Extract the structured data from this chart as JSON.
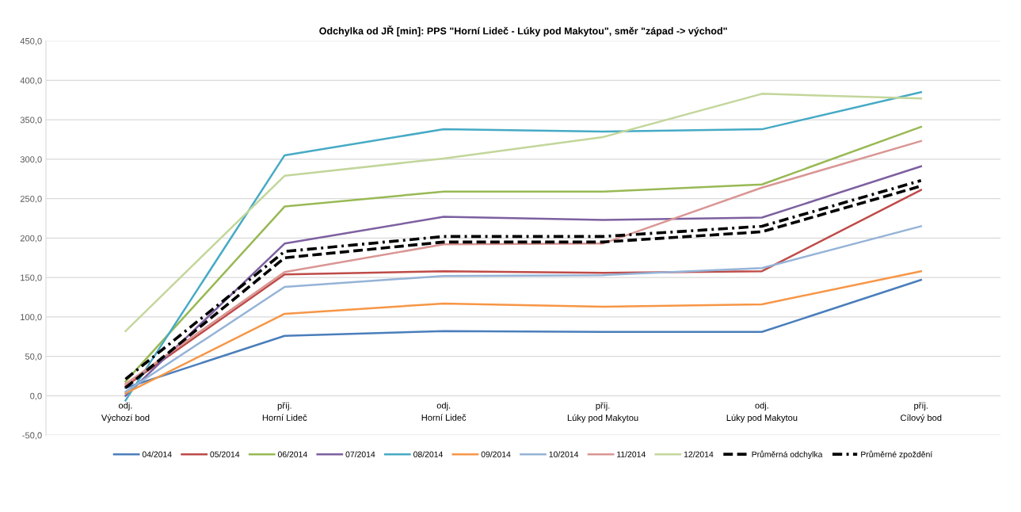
{
  "chart_data": {
    "type": "line",
    "title": "Odchylka od JŘ [min]: PPS \"Horní Lideč - Lúky pod Makytou\", směr \"západ -> východ\"",
    "categories": [
      "odj.\nVýchozí bod",
      "příj.\nHorní Lideč",
      "odj.\nHorní Lideč",
      "příj.\nLúky pod Makytou",
      "odj.\nLúky pod Makytou",
      "příj.\nCílový bod"
    ],
    "series": [
      {
        "name": "04/2014",
        "color": "#4a7ebb",
        "values": [
          10,
          76,
          82,
          81,
          81,
          147
        ]
      },
      {
        "name": "05/2014",
        "color": "#be4b48",
        "values": [
          12,
          154,
          158,
          156,
          158,
          261
        ]
      },
      {
        "name": "06/2014",
        "color": "#98b954",
        "values": [
          18,
          240,
          259,
          259,
          268,
          341
        ]
      },
      {
        "name": "07/2014",
        "color": "#7d60a0",
        "values": [
          0,
          193,
          227,
          223,
          226,
          291
        ]
      },
      {
        "name": "08/2014",
        "color": "#46aac5",
        "values": [
          -6,
          305,
          338,
          335,
          338,
          385
        ]
      },
      {
        "name": "09/2014",
        "color": "#f79646",
        "values": [
          3,
          104,
          117,
          113,
          116,
          158
        ]
      },
      {
        "name": "10/2014",
        "color": "#95b3d7",
        "values": [
          5,
          138,
          152,
          153,
          162,
          215
        ]
      },
      {
        "name": "11/2014",
        "color": "#d99694",
        "values": [
          15,
          157,
          192,
          193,
          264,
          323
        ]
      },
      {
        "name": "12/2014",
        "color": "#c3d69b",
        "values": [
          82,
          279,
          301,
          328,
          383,
          377
        ]
      },
      {
        "name": "Průměrná odchylka",
        "color": "#000000",
        "line_style": "dashed",
        "values": [
          10,
          175,
          195,
          195,
          208,
          266
        ]
      },
      {
        "name": "Průměrné zpoždění",
        "color": "#000000",
        "line_style": "dashdot",
        "values": [
          21,
          183,
          202,
          202,
          215,
          273
        ]
      }
    ],
    "ylim": [
      -50,
      450
    ],
    "yticks": [
      {
        "value": -50,
        "label": "-50,0"
      },
      {
        "value": 0,
        "label": "0,0"
      },
      {
        "value": 50,
        "label": "50,0"
      },
      {
        "value": 100,
        "label": "100,0"
      },
      {
        "value": 150,
        "label": "150,0"
      },
      {
        "value": 200,
        "label": "200,0"
      },
      {
        "value": 250,
        "label": "250,0"
      },
      {
        "value": 300,
        "label": "300,0"
      },
      {
        "value": 350,
        "label": "350,0"
      },
      {
        "value": 400,
        "label": "400,0"
      },
      {
        "value": 450,
        "label": "450,0"
      }
    ],
    "grid": "y",
    "legend": "bottom",
    "line_style": "solid",
    "marker": "none"
  }
}
